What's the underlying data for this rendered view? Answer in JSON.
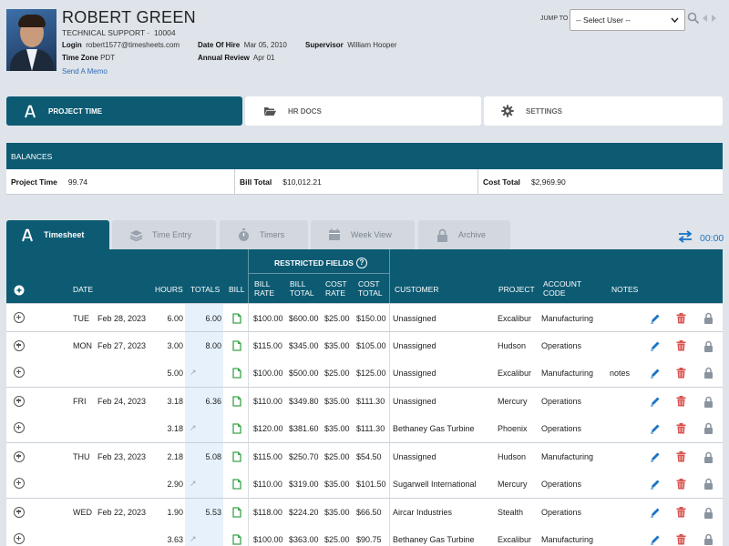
{
  "header": {
    "name": "ROBERT GREEN",
    "department": "TECHNICAL SUPPORT",
    "employee_number": "10004",
    "login_label": "Login",
    "login_value": "robert1577@timesheets.com",
    "timezone_label": "Time Zone",
    "timezone_value": "PDT",
    "hire_label": "Date Of Hire",
    "hire_value": "Mar 05, 2010",
    "review_label": "Annual Review",
    "review_value": "Apr 01",
    "supervisor_label": "Supervisor",
    "supervisor_value": "William Hooper",
    "memo_link": "Send A Memo",
    "jump_label": "JUMP TO",
    "select_placeholder": "-- Select User --",
    "search_icon": "magnifier-icon",
    "prev_icon": "triangle-left-icon",
    "next_icon": "triangle-right-icon"
  },
  "main_tabs": [
    {
      "label": "PROJECT TIME",
      "icon": "project-time-icon",
      "active": true
    },
    {
      "label": "HR DOCS",
      "icon": "folder-icon",
      "active": false
    },
    {
      "label": "SETTINGS",
      "icon": "gear-icon",
      "active": false
    }
  ],
  "balances": {
    "title": "BALANCES",
    "items": [
      {
        "label": "Project Time",
        "value": "99.74"
      },
      {
        "label": "Bill Total",
        "value": "$10,012.21"
      },
      {
        "label": "Cost Total",
        "value": "$2,969.90"
      }
    ]
  },
  "sub_tabs": [
    {
      "label": "Timesheet",
      "icon": "project-time-icon",
      "active": true
    },
    {
      "label": "Time Entry",
      "icon": "stack-icon",
      "active": false
    },
    {
      "label": "Timers",
      "icon": "stopwatch-icon",
      "active": false
    },
    {
      "label": "Week View",
      "icon": "calendar-icon",
      "active": false
    },
    {
      "label": "Archive",
      "icon": "lock-icon",
      "active": false
    }
  ],
  "timer": {
    "value": "00:00",
    "icon": "swap-arrows-icon"
  },
  "colors": {
    "brand": "#0d5b73",
    "accent": "#1b74c6",
    "edit": "#1b74c6",
    "delete": "#d9534f",
    "lock": "#8a949e",
    "bill": "#3aa34a"
  },
  "table": {
    "headers": {
      "date": "DATE",
      "hours": "HOURS",
      "totals": "TOTALS",
      "bill": "BILL",
      "restricted": "RESTRICTED FIELDS",
      "restricted_help": "?",
      "bill_rate_1": "BILL",
      "bill_rate_2": "RATE",
      "bill_total_1": "BILL",
      "bill_total_2": "TOTAL",
      "cost_rate_1": "COST",
      "cost_rate_2": "RATE",
      "cost_total_1": "COST",
      "cost_total_2": "TOTAL",
      "customer": "CUSTOMER",
      "project": "PROJECT",
      "account_1": "ACCOUNT",
      "account_2": "CODE",
      "notes": "NOTES"
    },
    "rows": [
      {
        "day": "TUE",
        "date": "Feb 28, 2023",
        "hours": "6.00",
        "total": "6.00",
        "bill_rate": "$100.00",
        "bill_total": "$600.00",
        "cost_rate": "$25.00",
        "cost_total": "$150.00",
        "customer": "Unassigned",
        "project": "Excalibur",
        "account": "Manufacturing",
        "notes": "",
        "group_start": true
      },
      {
        "day": "MON",
        "date": "Feb 27, 2023",
        "hours": "3.00",
        "total": "8.00",
        "bill_rate": "$115.00",
        "bill_total": "$345.00",
        "cost_rate": "$35.00",
        "cost_total": "$105.00",
        "customer": "Unassigned",
        "project": "Hudson",
        "account": "Operations",
        "notes": "",
        "group_start": true
      },
      {
        "day": "",
        "date": "",
        "hours": "5.00",
        "total": "",
        "bill_rate": "$100.00",
        "bill_total": "$500.00",
        "cost_rate": "$25.00",
        "cost_total": "$125.00",
        "customer": "Unassigned",
        "project": "Excalibur",
        "account": "Manufacturing",
        "notes": "notes",
        "group_start": false
      },
      {
        "day": "FRI",
        "date": "Feb 24, 2023",
        "hours": "3.18",
        "total": "6.36",
        "bill_rate": "$110.00",
        "bill_total": "$349.80",
        "cost_rate": "$35.00",
        "cost_total": "$111.30",
        "customer": "Unassigned",
        "project": "Mercury",
        "account": "Operations",
        "notes": "",
        "group_start": true
      },
      {
        "day": "",
        "date": "",
        "hours": "3.18",
        "total": "",
        "bill_rate": "$120.00",
        "bill_total": "$381.60",
        "cost_rate": "$35.00",
        "cost_total": "$111.30",
        "customer": "Bethaney Gas Turbine",
        "project": "Phoenix",
        "account": "Operations",
        "notes": "",
        "group_start": false
      },
      {
        "day": "THU",
        "date": "Feb 23, 2023",
        "hours": "2.18",
        "total": "5.08",
        "bill_rate": "$115.00",
        "bill_total": "$250.70",
        "cost_rate": "$25.00",
        "cost_total": "$54.50",
        "customer": "Unassigned",
        "project": "Hudson",
        "account": "Manufacturing",
        "notes": "",
        "group_start": true
      },
      {
        "day": "",
        "date": "",
        "hours": "2.90",
        "total": "",
        "bill_rate": "$110.00",
        "bill_total": "$319.00",
        "cost_rate": "$35.00",
        "cost_total": "$101.50",
        "customer": "Sugarwell International",
        "project": "Mercury",
        "account": "Operations",
        "notes": "",
        "group_start": false
      },
      {
        "day": "WED",
        "date": "Feb 22, 2023",
        "hours": "1.90",
        "total": "5.53",
        "bill_rate": "$118.00",
        "bill_total": "$224.20",
        "cost_rate": "$35.00",
        "cost_total": "$66.50",
        "customer": "Aircar Industries",
        "project": "Stealth",
        "account": "Operations",
        "notes": "",
        "group_start": true
      },
      {
        "day": "",
        "date": "",
        "hours": "3.63",
        "total": "",
        "bill_rate": "$100.00",
        "bill_total": "$363.00",
        "cost_rate": "$25.00",
        "cost_total": "$90.75",
        "customer": "Bethaney Gas Turbine",
        "project": "Excalibur",
        "account": "Manufacturing",
        "notes": "",
        "group_start": false
      }
    ]
  }
}
